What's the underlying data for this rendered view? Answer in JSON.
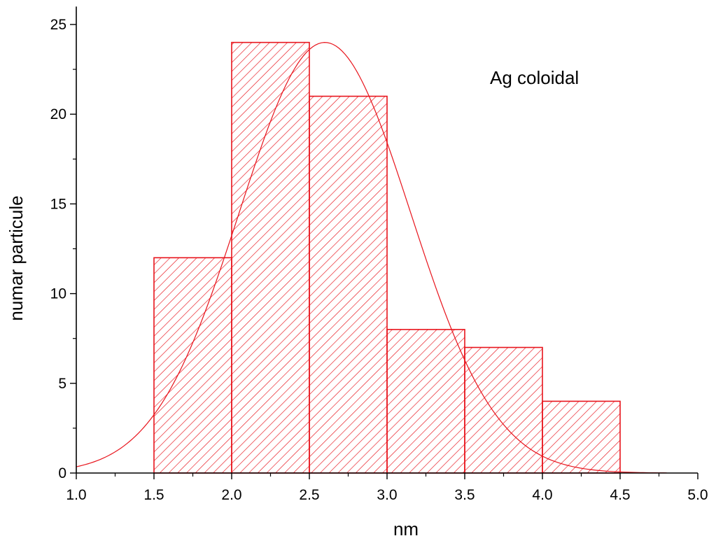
{
  "chart_data": {
    "type": "bar",
    "subtype": "histogram-with-gaussian-fit",
    "bins": [
      {
        "start": 1.5,
        "end": 2.0,
        "count": 12
      },
      {
        "start": 2.0,
        "end": 2.5,
        "count": 24
      },
      {
        "start": 2.5,
        "end": 3.0,
        "count": 21
      },
      {
        "start": 3.0,
        "end": 3.5,
        "count": 8
      },
      {
        "start": 3.5,
        "end": 4.0,
        "count": 7
      },
      {
        "start": 4.0,
        "end": 4.5,
        "count": 4
      }
    ],
    "fit_curve": {
      "type": "gaussian",
      "peak_x": 2.6,
      "peak_y": 24,
      "sigma": 0.55,
      "x_range": [
        1.0,
        4.8
      ]
    },
    "annotation": "Ag coloidal",
    "xlabel": "nm",
    "ylabel": "numar particule",
    "xlim": [
      1.0,
      5.0
    ],
    "ylim": [
      0,
      26
    ],
    "x_ticks": [
      "1.0",
      "1.5",
      "2.0",
      "2.5",
      "3.0",
      "3.5",
      "4.0",
      "4.5",
      "5.0"
    ],
    "y_ticks": [
      "0",
      "5",
      "10",
      "15",
      "20",
      "25"
    ],
    "grid": false,
    "colors": {
      "bar_stroke": "#e8141c",
      "fit_line": "#e8141c",
      "axis": "#000000"
    }
  }
}
